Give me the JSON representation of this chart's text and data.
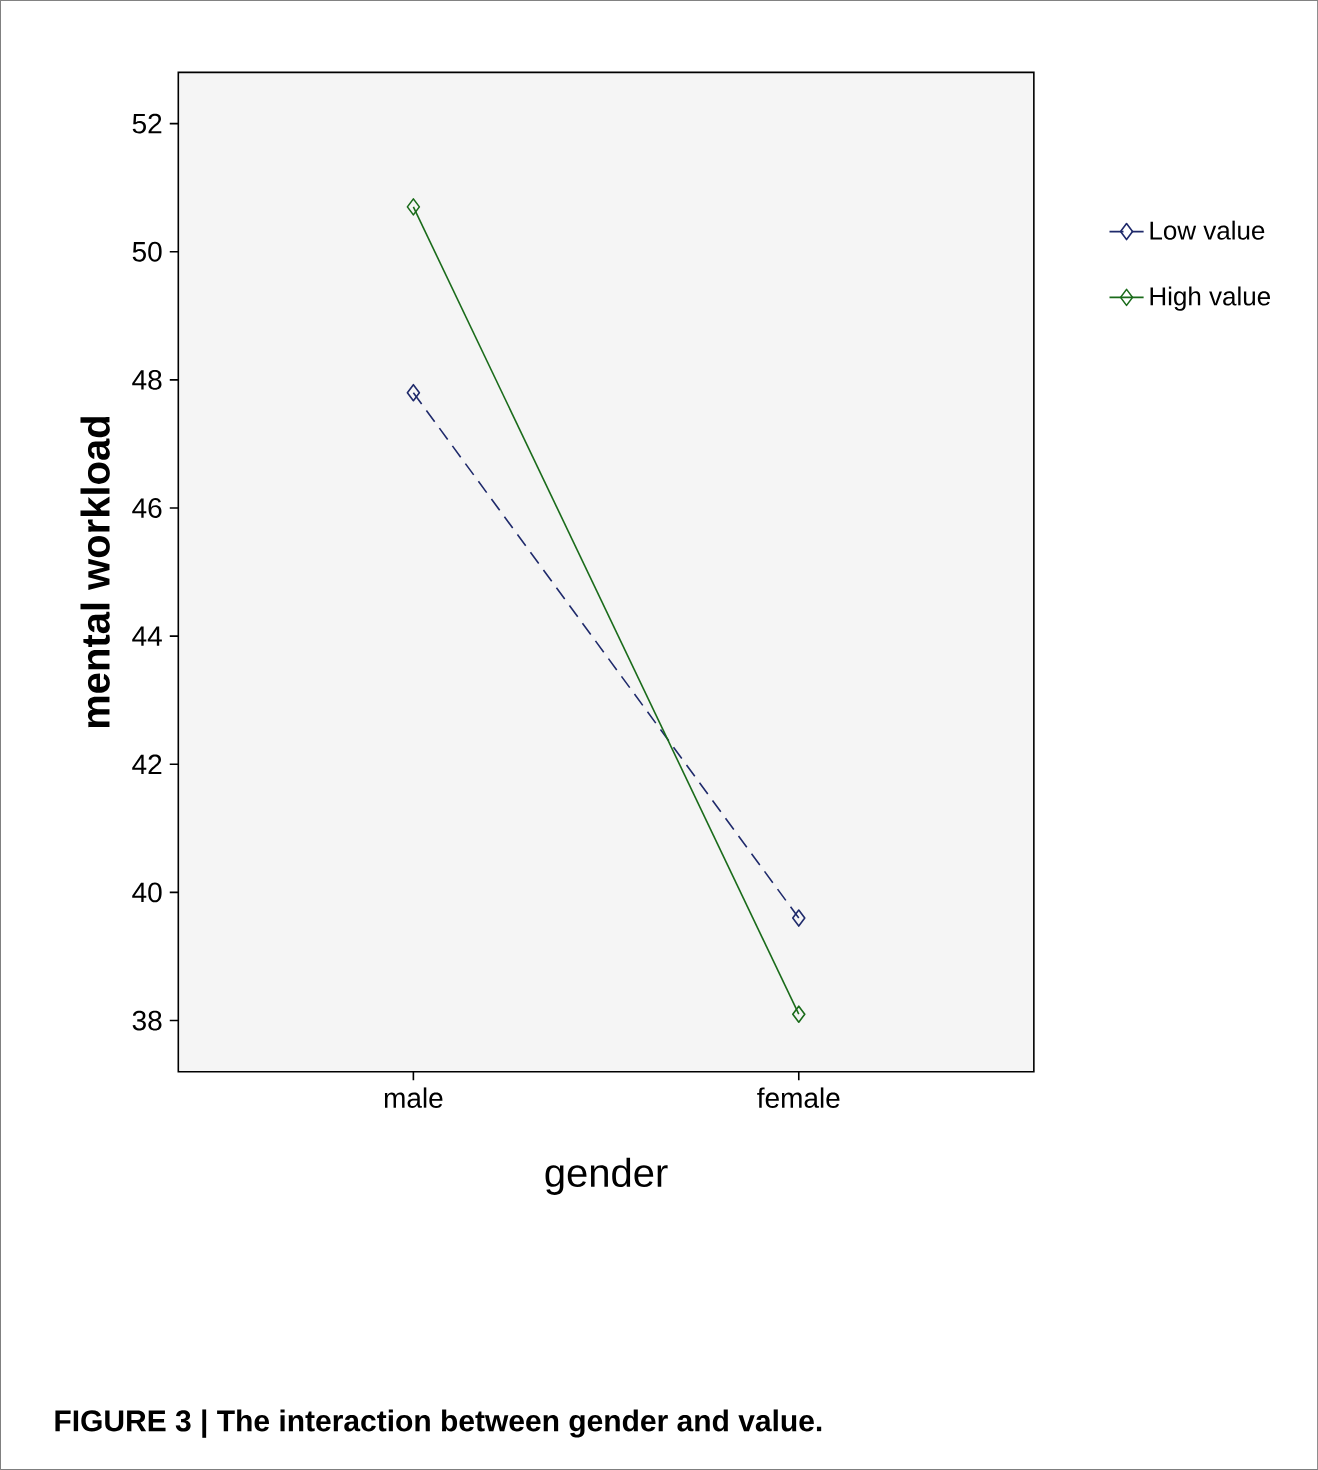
{
  "chart_data": {
    "type": "line",
    "xlabel": "gender",
    "ylabel": "mental workload",
    "categories": [
      "male",
      "female"
    ],
    "series": [
      {
        "name": "Low value",
        "color": "#1f2a6b",
        "values": [
          47.8,
          39.6
        ],
        "line_style": "dashed"
      },
      {
        "name": "High value",
        "color": "#1a6b1a",
        "values": [
          50.7,
          38.1
        ],
        "line_style": "solid"
      }
    ],
    "ylim": [
      37.2,
      52.8
    ],
    "yticks": [
      38,
      40,
      42,
      44,
      46,
      48,
      50,
      52
    ],
    "marker": "diamond",
    "grid": false,
    "legend": "right",
    "annotations": [
      "**FIGURE 3 | The interaction between gender and value.**"
    ]
  }
}
